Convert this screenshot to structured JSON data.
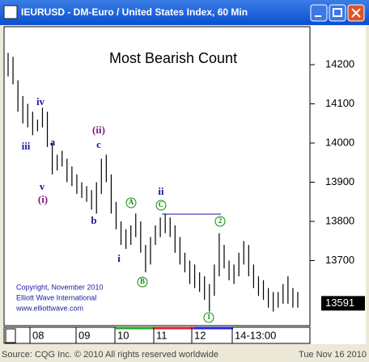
{
  "window_title": "IEURUSD - DM-Euro / United States Index, 60 Min",
  "chart_data": {
    "type": "ohlc",
    "title": "Most Bearish Count",
    "ylim": [
      13534,
      14297
    ],
    "yticks": [
      13700,
      13800,
      13900,
      14000,
      14100,
      14200
    ],
    "x_labels": [
      "08",
      "09",
      "10",
      "11",
      "12",
      "14-13:00"
    ],
    "color": "#000000",
    "highs": [
      14230,
      14220,
      14160,
      14120,
      14100,
      14080,
      14060,
      14090,
      14080,
      14000,
      13970,
      13980,
      13960,
      13940,
      13920,
      13900,
      13890,
      13880,
      13900,
      13960,
      13970,
      13920,
      13850,
      13800,
      13780,
      13790,
      13820,
      13800,
      13740,
      13760,
      13790,
      13810,
      13820,
      13810,
      13790,
      13760,
      13720,
      13700,
      13690,
      13670,
      13660,
      13640,
      13690,
      13770,
      13740,
      13700,
      13690,
      13720,
      13750,
      13740,
      13690,
      13660,
      13650,
      13630,
      13620,
      13620,
      13640,
      13660,
      13630,
      13620
    ],
    "lows": [
      14170,
      14150,
      14080,
      14050,
      14040,
      14020,
      14030,
      14040,
      13990,
      13920,
      13930,
      13940,
      13900,
      13890,
      13870,
      13860,
      13850,
      13830,
      13820,
      13870,
      13900,
      13820,
      13780,
      13740,
      13730,
      13740,
      13760,
      13720,
      13670,
      13690,
      13740,
      13760,
      13770,
      13760,
      13720,
      13690,
      13670,
      13640,
      13630,
      13620,
      13600,
      13570,
      13610,
      13660,
      13680,
      13650,
      13640,
      13660,
      13690,
      13660,
      13630,
      13610,
      13600,
      13580,
      13570,
      13580,
      13590,
      13590,
      13580,
      13580
    ],
    "last_price": 13591,
    "annotations": [
      {
        "text": "iv",
        "color": "#1a1aa0"
      },
      {
        "text": "iii",
        "color": "#1a1aa0"
      },
      {
        "text": "a",
        "color": "#1a1aa0"
      },
      {
        "text": "v",
        "color": "#1a1aa0"
      },
      {
        "text": "(i)",
        "color": "#7a1a7a"
      },
      {
        "text": "(ii)",
        "color": "#7a1a7a"
      },
      {
        "text": "c",
        "color": "#1a1aa0"
      },
      {
        "text": "b",
        "color": "#1a1aa0"
      },
      {
        "text": "i",
        "color": "#1a1aa0"
      },
      {
        "text": "ii",
        "color": "#1a1aa0"
      },
      {
        "text": "A",
        "color": "#118811"
      },
      {
        "text": "B",
        "color": "#118811"
      },
      {
        "text": "C",
        "color": "#118811"
      },
      {
        "text": "2",
        "color": "#118811"
      },
      {
        "text": "1",
        "color": "#118811"
      }
    ],
    "copyright": [
      "Copyright, November 2010",
      "Elliott Wave International",
      "www.elliottwave.com"
    ]
  },
  "footer": {
    "source": "Source: CQG Inc. © 2010 All rights reserved worldwide",
    "date": "Tue Nov 16 2010"
  }
}
